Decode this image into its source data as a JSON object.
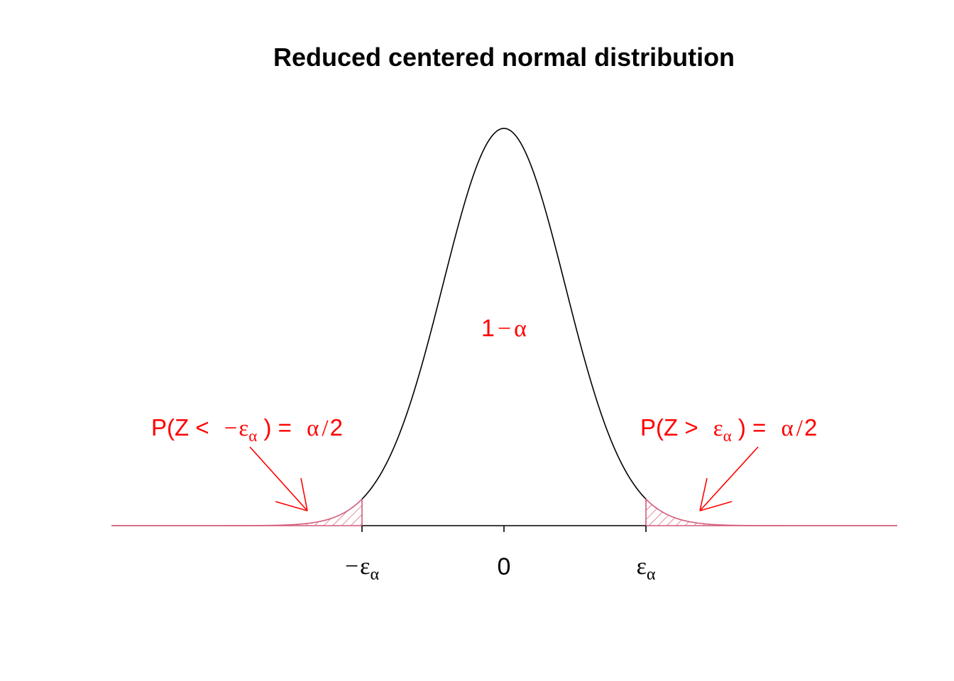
{
  "title": "Reduced centered normal distribution",
  "center_label": {
    "one": "1",
    "minus": "−",
    "alpha": "α"
  },
  "left_annotation": {
    "prefix": "P(Z < ",
    "minus": "−",
    "epsilon": "ε",
    "alpha_sub": "α",
    "mid": " ) = ",
    "alpha": "α",
    "slash": "/",
    "two": "2"
  },
  "right_annotation": {
    "prefix": "P(Z > ",
    "epsilon": "ε",
    "alpha_sub": "α",
    "mid": " ) = ",
    "alpha": "α",
    "slash": "/",
    "two": "2"
  },
  "ticks": {
    "neg": {
      "minus": "−",
      "epsilon": "ε",
      "alpha": "α"
    },
    "zero": "0",
    "pos": {
      "epsilon": "ε",
      "alpha": "α"
    }
  },
  "colors": {
    "curve": "#000000",
    "tail": "#d45a78",
    "annotation": "#ff0000"
  }
}
